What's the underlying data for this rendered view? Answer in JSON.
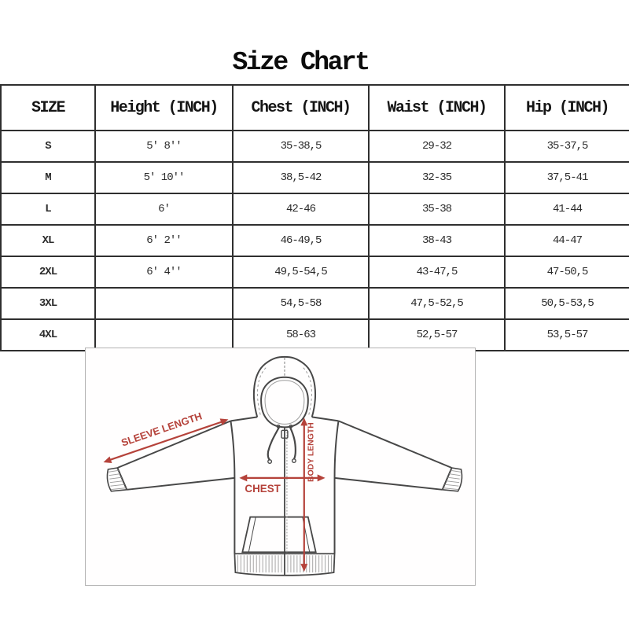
{
  "title": "Size Chart",
  "table": {
    "columns": [
      "SIZE",
      "Height (INCH)",
      "Chest (INCH)",
      "Waist (INCH)",
      "Hip (INCH)"
    ],
    "rows": [
      {
        "size": "S",
        "height": "5' 8''",
        "chest": "35-38,5",
        "waist": "29-32",
        "hip": "35-37,5"
      },
      {
        "size": "M",
        "height": "5' 10''",
        "chest": "38,5-42",
        "waist": "32-35",
        "hip": "37,5-41"
      },
      {
        "size": "L",
        "height": "6'",
        "chest": "42-46",
        "waist": "35-38",
        "hip": "41-44"
      },
      {
        "size": "XL",
        "height": "6' 2''",
        "chest": "46-49,5",
        "waist": "38-43",
        "hip": "44-47"
      },
      {
        "size": "2XL",
        "height": "6' 4''",
        "chest": "49,5-54,5",
        "waist": "43-47,5",
        "hip": "47-50,5"
      },
      {
        "size": "3XL",
        "height": "",
        "chest": "54,5-58",
        "waist": "47,5-52,5",
        "hip": "50,5-53,5"
      },
      {
        "size": "4XL",
        "height": "",
        "chest": "58-63",
        "waist": "52,5-57",
        "hip": "53,5-57"
      }
    ]
  },
  "diagram": {
    "sleeve_label": "SLEEVE LENGTH",
    "body_label": "BODY LENGTH",
    "chest_label": "CHEST"
  },
  "colors": {
    "accent": "#b5423a",
    "line": "#474747",
    "light": "#9b9b9b",
    "box_border": "#b3b3b3",
    "table_border": "#2f2f2f",
    "text": "#1e1e1e"
  }
}
